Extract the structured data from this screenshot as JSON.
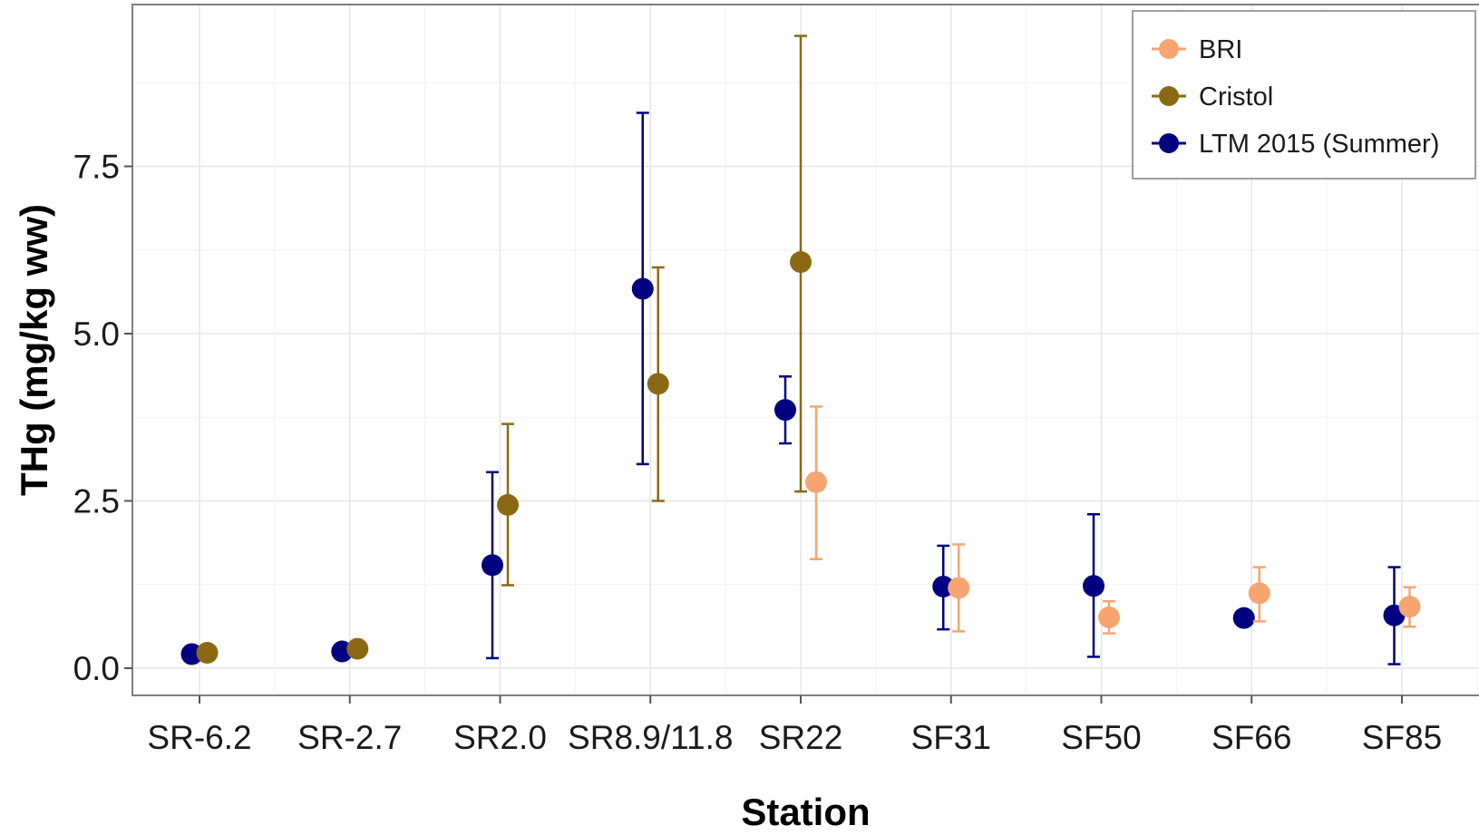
{
  "chart_data": {
    "type": "scatter",
    "xlabel": "Station",
    "ylabel": "THg (mg/kg ww)",
    "categories": [
      "SR-6.2",
      "SR-2.7",
      "SR2.0",
      "SR8.9/11.8",
      "SR22",
      "SF31",
      "SF50",
      "SF66",
      "SF85"
    ],
    "yticks": [
      "0.0",
      "2.5",
      "5.0",
      "7.5"
    ],
    "ylim": [
      -0.38,
      9.9
    ],
    "grid": true,
    "legend_position": "top-right",
    "series": [
      {
        "name": "BRI",
        "color": "#F6A570",
        "points": [
          {
            "category": "SR22",
            "y": 2.78,
            "ymin": 1.63,
            "ymax": 3.91
          },
          {
            "category": "SF31",
            "y": 1.2,
            "ymin": 0.55,
            "ymax": 1.85
          },
          {
            "category": "SF50",
            "y": 0.76,
            "ymin": 0.52,
            "ymax": 1.0
          },
          {
            "category": "SF66",
            "y": 1.12,
            "ymin": 0.7,
            "ymax": 1.51
          },
          {
            "category": "SF85",
            "y": 0.92,
            "ymin": 0.62,
            "ymax": 1.21
          }
        ]
      },
      {
        "name": "Cristol",
        "color": "#8B6914",
        "points": [
          {
            "category": "SR-6.2",
            "y": 0.23
          },
          {
            "category": "SR-2.7",
            "y": 0.29
          },
          {
            "category": "SR2.0",
            "y": 2.44,
            "ymin": 1.24,
            "ymax": 3.65
          },
          {
            "category": "SR8.9/11.8",
            "y": 4.25,
            "ymin": 2.5,
            "ymax": 5.99
          },
          {
            "category": "SR22",
            "y": 6.07,
            "ymin": 2.64,
            "ymax": 9.45
          }
        ]
      },
      {
        "name": "LTM 2015 (Summer)",
        "color": "#000080",
        "points": [
          {
            "category": "SR-6.2",
            "y": 0.21
          },
          {
            "category": "SR-2.7",
            "y": 0.25
          },
          {
            "category": "SR2.0",
            "y": 1.54,
            "ymin": 0.15,
            "ymax": 2.93
          },
          {
            "category": "SR8.9/11.8",
            "y": 5.67,
            "ymin": 3.05,
            "ymax": 8.3
          },
          {
            "category": "SR22",
            "y": 3.86,
            "ymin": 3.36,
            "ymax": 4.36
          },
          {
            "category": "SF31",
            "y": 1.22,
            "ymin": 0.58,
            "ymax": 1.83
          },
          {
            "category": "SF50",
            "y": 1.23,
            "ymin": 0.17,
            "ymax": 2.3
          },
          {
            "category": "SF66",
            "y": 0.75
          },
          {
            "category": "SF85",
            "y": 0.79,
            "ymin": 0.06,
            "ymax": 1.51
          }
        ]
      }
    ]
  }
}
